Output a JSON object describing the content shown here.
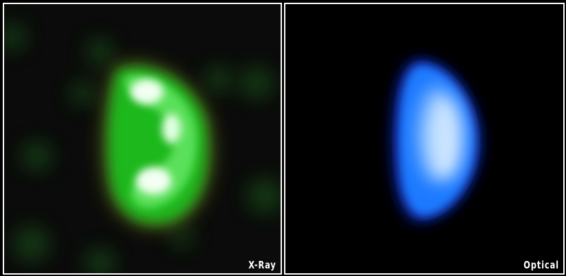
{
  "panels": [
    {
      "label": "X-Ray",
      "tint": "#22c422",
      "core": "#f2fff2",
      "halo": "#b8a040"
    },
    {
      "label": "Optical",
      "tint": "#1f7aff",
      "core": "#f6fbff",
      "halo": "#0a1a9a"
    }
  ],
  "colors": {
    "background": "#000000",
    "frame": "#ffffff"
  }
}
